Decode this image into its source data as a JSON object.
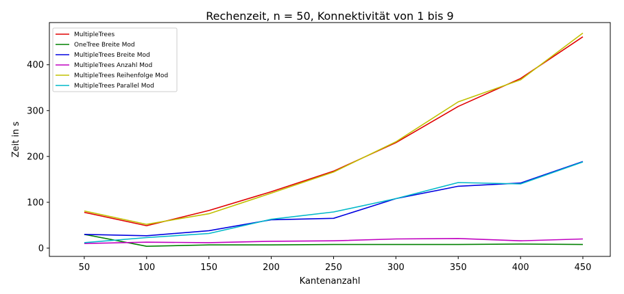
{
  "chart_data": {
    "type": "line",
    "title": "Rechenzeit, n = 50, Konnektivität von 1 bis 9",
    "xlabel": "Kantenanzahl",
    "ylabel": "Zeit in s",
    "x": [
      50,
      100,
      150,
      200,
      250,
      300,
      350,
      400,
      450
    ],
    "xticks": [
      50,
      100,
      150,
      200,
      250,
      300,
      350,
      400,
      450
    ],
    "yticks": [
      0,
      100,
      200,
      300,
      400
    ],
    "xlim": [
      22,
      472
    ],
    "ylim": [
      -18,
      492
    ],
    "grid": false,
    "legend_position": "upper-left",
    "series": [
      {
        "name": "MultipleTrees",
        "color": "#e00000",
        "values": [
          78,
          49,
          82,
          123,
          168,
          230,
          309,
          370,
          461
        ]
      },
      {
        "name": "OneTree Breite Mod",
        "color": "#008000",
        "values": [
          30,
          4,
          7,
          7,
          8,
          8,
          8,
          9,
          8
        ]
      },
      {
        "name": "MultipleTrees Breite Mod",
        "color": "#0000e0",
        "values": [
          30,
          27,
          38,
          62,
          65,
          108,
          135,
          142,
          189
        ]
      },
      {
        "name": "MultipleTrees Anzahl Mod",
        "color": "#c000c0",
        "values": [
          10,
          13,
          12,
          15,
          16,
          20,
          21,
          16,
          20
        ]
      },
      {
        "name": "MultipleTrees Reihenfolge Mod",
        "color": "#c0c000",
        "values": [
          81,
          52,
          75,
          120,
          166,
          232,
          319,
          367,
          469
        ]
      },
      {
        "name": "MultipleTrees Parallel Mod",
        "color": "#00b8c8",
        "values": [
          12,
          23,
          32,
          63,
          79,
          108,
          143,
          140,
          188
        ]
      }
    ]
  }
}
